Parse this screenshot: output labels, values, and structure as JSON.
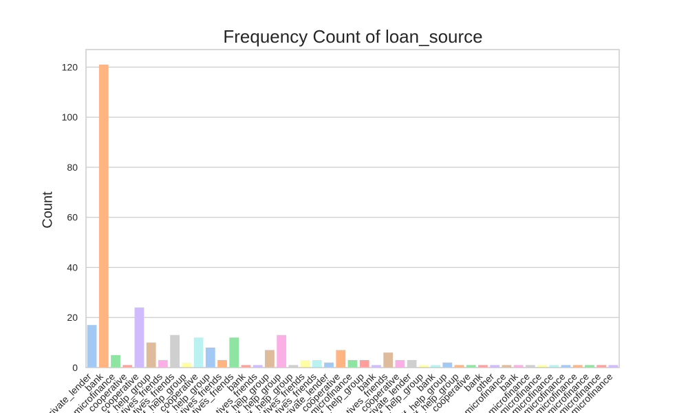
{
  "chart_data": {
    "type": "bar",
    "title": "Frequency Count of loan_source",
    "xlabel": "",
    "ylabel": "Count",
    "ylim": [
      0,
      127
    ],
    "yticks": [
      0,
      20,
      40,
      60,
      80,
      100,
      120
    ],
    "grid": "horizontal",
    "categories": [
      "private_lender",
      "bank",
      "microfinance",
      "cooperative",
      "cooperative",
      "self_help_group",
      "relatives_friends",
      "relatives_friends",
      "self_help_group",
      "cooperative",
      "self_help_group",
      "relatives_friends",
      "relatives_friends",
      "bank",
      "relatives_friends",
      "self_help_group",
      "self_help_group",
      "self_help_group",
      "relatives_friends",
      "relatives_friends",
      "private_lender",
      "cooperative",
      "microfinance",
      "self_help_group",
      "bank",
      "relatives_friends",
      "cooperative",
      "private_lender",
      "self_help_group",
      "bank",
      "self_help_group",
      "self_help_group",
      "cooperative",
      "bank",
      "other",
      "microfinance",
      "bank",
      "microfinance",
      "microfinance",
      "microfinance",
      "microfinance",
      "microfinance",
      "microfinance",
      "microfinance",
      "microfinance"
    ],
    "values": [
      17,
      121,
      5,
      1,
      24,
      10,
      3,
      13,
      2,
      12,
      8,
      3,
      12,
      1,
      1,
      7,
      13,
      1,
      3,
      3,
      2,
      7,
      3,
      3,
      1,
      6,
      3,
      3,
      1,
      1,
      2,
      1,
      1,
      1,
      1,
      1,
      1,
      1,
      1,
      1,
      1,
      1,
      1,
      1,
      1
    ],
    "palette": [
      "#a1c9f4",
      "#ffb482",
      "#8de5a1",
      "#ff9f9b",
      "#d0bbff",
      "#debb9b",
      "#fab0e4",
      "#cfcfcf",
      "#fffea3",
      "#b9f2f0"
    ]
  }
}
